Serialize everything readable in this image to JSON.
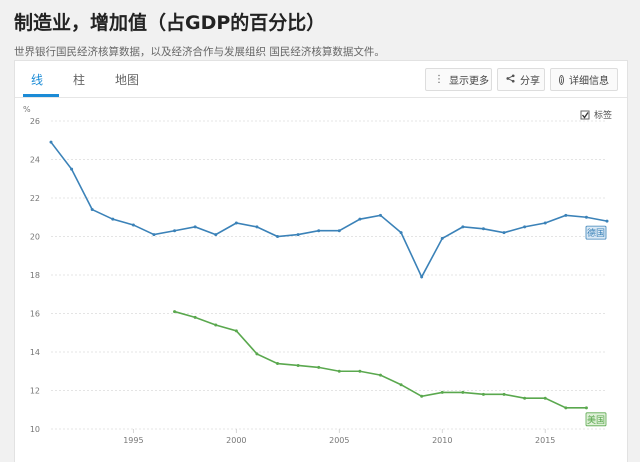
{
  "page": {
    "title": "制造业，增加值（占GDP的百分比）",
    "subtitle": "世界银行国民经济核算数据，以及经济合作与发展组织 国民经济核算数据文件。"
  },
  "tabs": [
    {
      "label": "线",
      "active": true
    },
    {
      "label": "柱",
      "active": false
    },
    {
      "label": "地图",
      "active": false
    }
  ],
  "toolbar": {
    "more_label": "显示更多",
    "more_icon": "vertical-ellipsis-icon",
    "share_label": "分享",
    "share_icon": "share-icon",
    "info_label": "详细信息",
    "info_icon": "info-icon"
  },
  "legend": {
    "checkbox_label": "标签",
    "checked": true
  },
  "chart_data": {
    "type": "line",
    "ylabel": "%",
    "ylim": [
      10,
      26
    ],
    "yticks": [
      "10",
      "12",
      "14",
      "16",
      "18",
      "20",
      "22",
      "24",
      "26"
    ],
    "xlim": [
      1991,
      2018
    ],
    "xticks": [
      "1995",
      "2000",
      "2005",
      "2010",
      "2015"
    ],
    "grid": true,
    "series": [
      {
        "name": "德国",
        "color": "#3b82b8",
        "x": [
          1991,
          1992,
          1993,
          1994,
          1995,
          1996,
          1997,
          1998,
          1999,
          2000,
          2001,
          2002,
          2003,
          2004,
          2005,
          2006,
          2007,
          2008,
          2009,
          2010,
          2011,
          2012,
          2013,
          2014,
          2015,
          2016,
          2017,
          2018
        ],
        "values": [
          24.9,
          23.5,
          21.4,
          20.9,
          20.6,
          20.1,
          20.3,
          20.5,
          20.1,
          20.7,
          20.5,
          20.0,
          20.1,
          20.3,
          20.3,
          20.9,
          21.1,
          20.2,
          17.9,
          19.9,
          20.5,
          20.4,
          20.2,
          20.5,
          20.7,
          21.1,
          21.0,
          20.8
        ]
      },
      {
        "name": "美国",
        "color": "#5aa84e",
        "x": [
          1997,
          1998,
          1999,
          2000,
          2001,
          2002,
          2003,
          2004,
          2005,
          2006,
          2007,
          2008,
          2009,
          2010,
          2011,
          2012,
          2013,
          2014,
          2015,
          2016,
          2017
        ],
        "values": [
          16.1,
          15.8,
          15.4,
          15.1,
          13.9,
          13.4,
          13.3,
          13.2,
          13.0,
          13.0,
          12.8,
          12.3,
          11.7,
          11.9,
          11.9,
          11.8,
          11.8,
          11.6,
          11.6,
          11.1,
          11.1
        ]
      }
    ]
  }
}
